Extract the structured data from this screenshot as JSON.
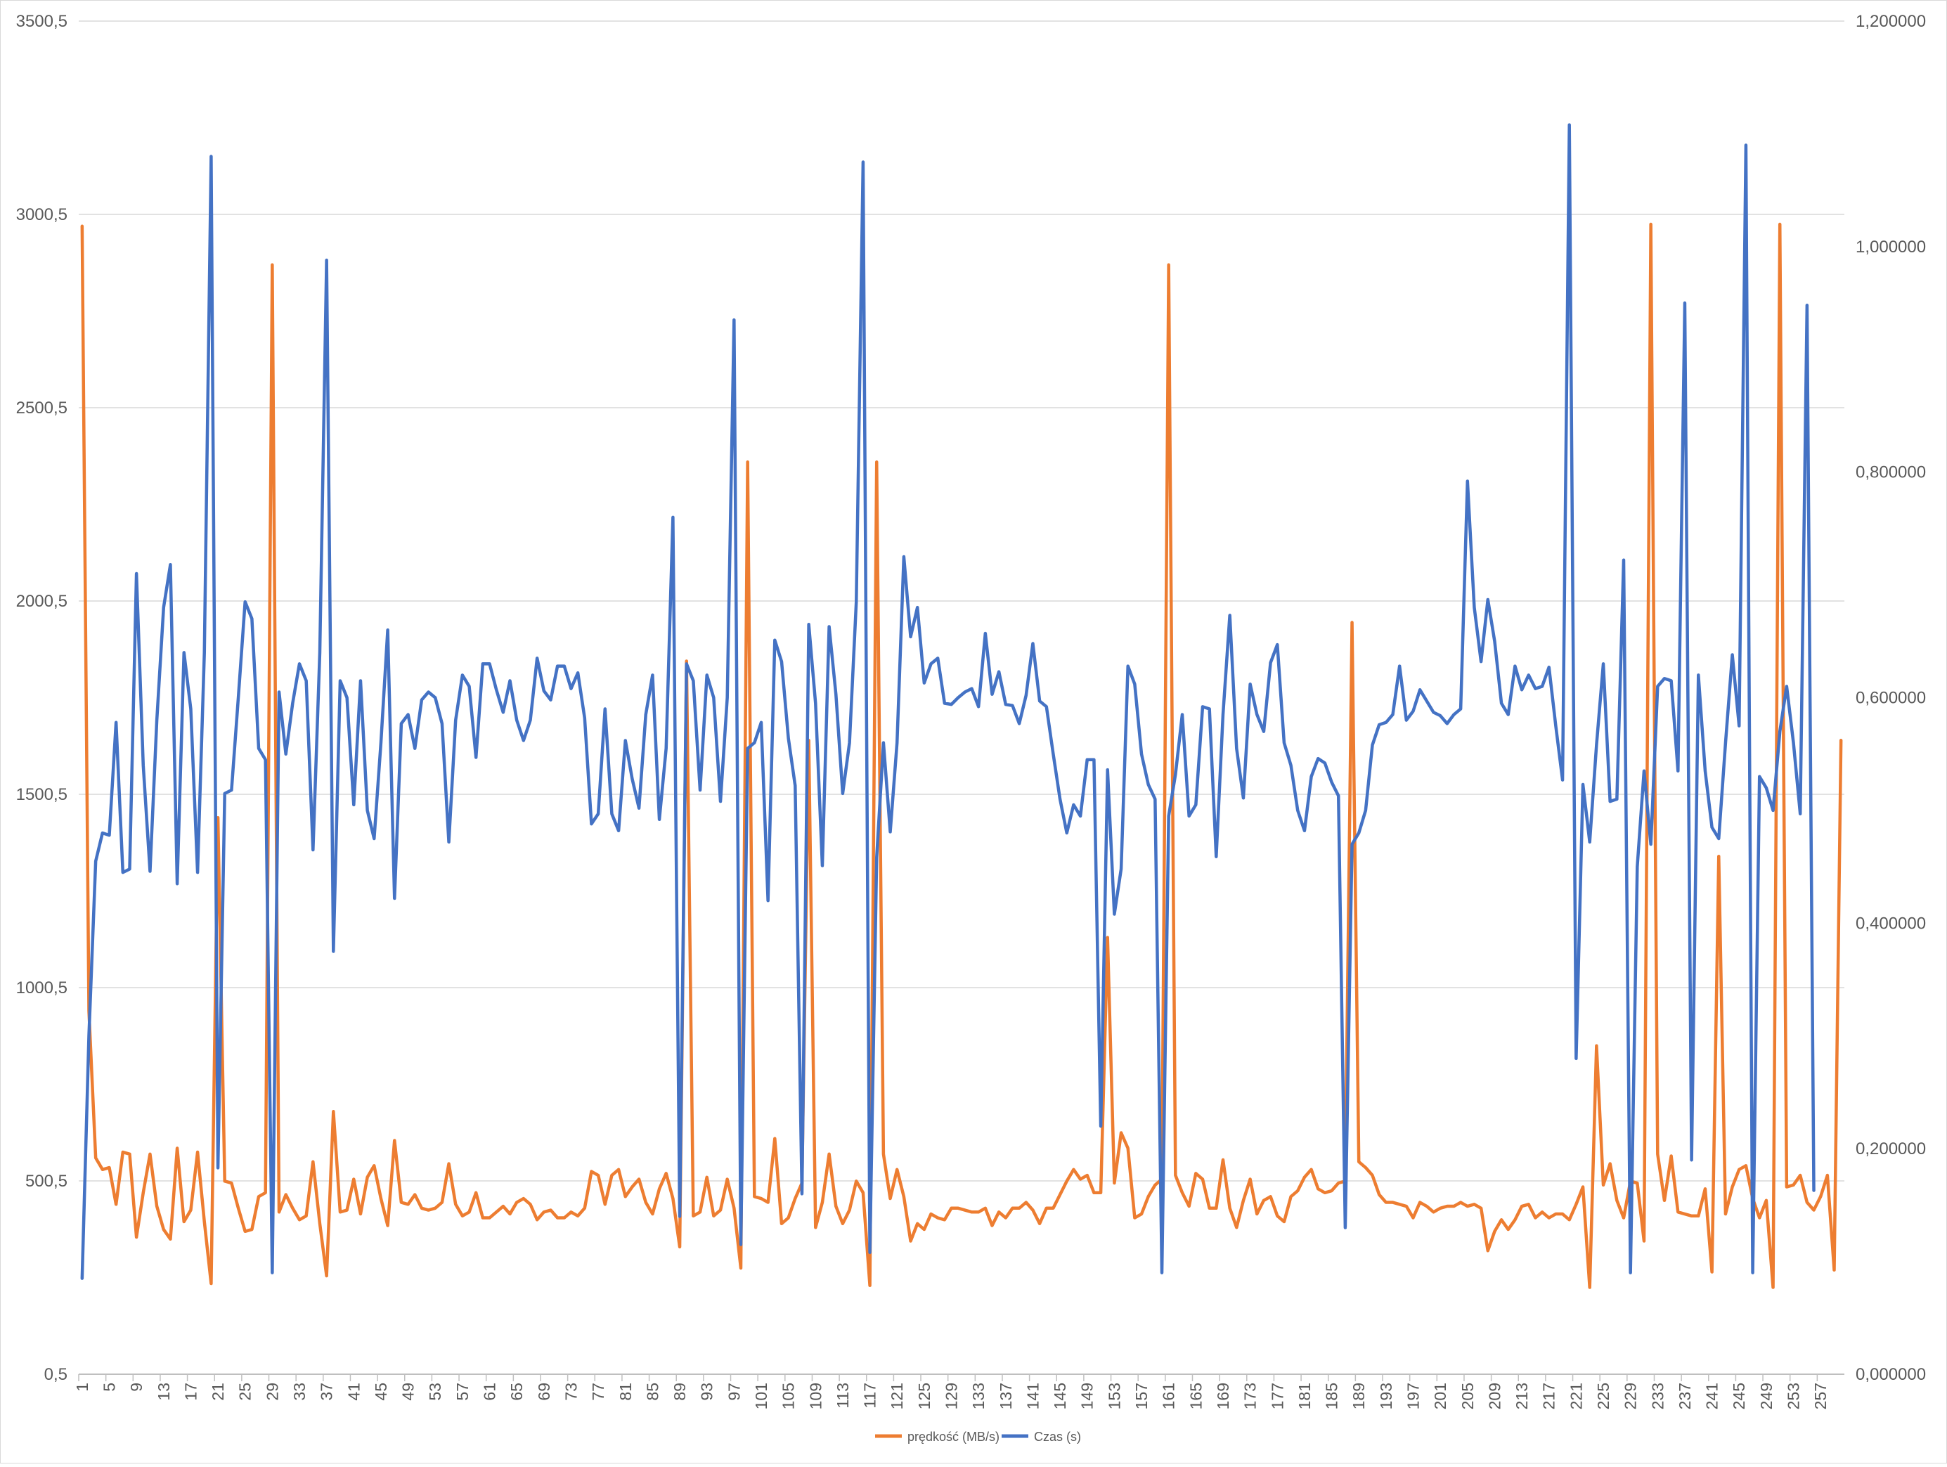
{
  "chart_data": {
    "type": "line",
    "title": "",
    "xlabel": "",
    "ylabel": "",
    "y2label": "",
    "x_start": 1,
    "x_tick_step": 4,
    "ylim": [
      0.5,
      3500.5
    ],
    "y_ticks": [
      0.5,
      500.5,
      1000.5,
      1500.5,
      2000.5,
      2500.5,
      3000.5,
      3500.5
    ],
    "y_tick_labels": [
      "0,5",
      "500,5",
      "1000,5",
      "1500,5",
      "2000,5",
      "2500,5",
      "3000,5",
      "3500,5"
    ],
    "y2lim": [
      0,
      1.2
    ],
    "y2_ticks": [
      0,
      0.2,
      0.4,
      0.6,
      0.8,
      1.0,
      1.2
    ],
    "y2_tick_labels": [
      "0,000000",
      "0,200000",
      "0,400000",
      "0,600000",
      "0,800000",
      "1,000000",
      "1,200000"
    ],
    "grid": true,
    "legend_position": "bottom",
    "series": [
      {
        "name": "prędkość (MB/s)",
        "axis": "left",
        "color": "#ED7D31",
        "values": [
          2970,
          940,
          560,
          530,
          535,
          440,
          575,
          570,
          355,
          470,
          570,
          435,
          375,
          350,
          585,
          395,
          425,
          575,
          395,
          235,
          1440,
          500,
          495,
          430,
          370,
          375,
          460,
          470,
          2870,
          420,
          465,
          430,
          400,
          410,
          550,
          390,
          255,
          680,
          420,
          425,
          505,
          415,
          510,
          540,
          455,
          385,
          605,
          445,
          440,
          465,
          430,
          425,
          430,
          445,
          545,
          440,
          410,
          420,
          470,
          405,
          405,
          420,
          435,
          415,
          445,
          455,
          440,
          400,
          420,
          425,
          405,
          405,
          420,
          410,
          430,
          525,
          515,
          440,
          515,
          530,
          460,
          485,
          505,
          445,
          415,
          480,
          520,
          455,
          330,
          1845,
          410,
          420,
          510,
          410,
          425,
          505,
          430,
          275,
          2360,
          460,
          455,
          445,
          610,
          390,
          405,
          455,
          495,
          1640,
          380,
          445,
          570,
          435,
          390,
          425,
          500,
          470,
          230,
          2360,
          570,
          455,
          530,
          460,
          345,
          390,
          375,
          415,
          405,
          400,
          430,
          430,
          425,
          420,
          420,
          430,
          385,
          420,
          405,
          430,
          430,
          445,
          425,
          390,
          430,
          430,
          465,
          500,
          530,
          505,
          515,
          470,
          470,
          1130,
          495,
          625,
          585,
          405,
          415,
          460,
          490,
          505,
          2870,
          515,
          470,
          435,
          520,
          505,
          430,
          430,
          555,
          430,
          380,
          450,
          505,
          415,
          450,
          460,
          410,
          395,
          460,
          475,
          510,
          530,
          480,
          470,
          475,
          495,
          500,
          1945,
          550,
          535,
          515,
          465,
          445,
          445,
          440,
          435,
          405,
          445,
          435,
          420,
          430,
          435,
          435,
          445,
          435,
          440,
          430,
          320,
          370,
          400,
          375,
          400,
          435,
          440,
          405,
          420,
          405,
          415,
          415,
          400,
          440,
          485,
          225,
          850,
          490,
          545,
          450,
          405,
          500,
          495,
          345,
          2975,
          570,
          450,
          565,
          420,
          415,
          410,
          410,
          480,
          265,
          1340,
          415,
          485,
          530,
          540,
          455,
          405,
          450,
          225,
          2975,
          485,
          490,
          515,
          445,
          425,
          460,
          515,
          270,
          1640
        ]
      },
      {
        "name": "Czas (s)",
        "axis": "right",
        "color": "#4472C4",
        "values": [
          0.085,
          0.3,
          0.455,
          0.48,
          0.478,
          0.578,
          0.445,
          0.448,
          0.71,
          0.54,
          0.446,
          0.58,
          0.68,
          0.718,
          0.435,
          0.64,
          0.59,
          0.445,
          0.64,
          1.08,
          0.183,
          0.515,
          0.518,
          0.6,
          0.685,
          0.67,
          0.555,
          0.545,
          0.09,
          0.605,
          0.55,
          0.595,
          0.63,
          0.615,
          0.465,
          0.64,
          0.988,
          0.375,
          0.615,
          0.6,
          0.505,
          0.615,
          0.5,
          0.475,
          0.56,
          0.66,
          0.422,
          0.577,
          0.585,
          0.555,
          0.598,
          0.605,
          0.6,
          0.577,
          0.472,
          0.58,
          0.62,
          0.61,
          0.547,
          0.63,
          0.63,
          0.607,
          0.587,
          0.615,
          0.58,
          0.562,
          0.58,
          0.635,
          0.606,
          0.598,
          0.628,
          0.628,
          0.608,
          0.622,
          0.582,
          0.488,
          0.497,
          0.59,
          0.497,
          0.482,
          0.562,
          0.528,
          0.502,
          0.585,
          0.62,
          0.492,
          0.555,
          0.76,
          0.14,
          0.63,
          0.615,
          0.518,
          0.62,
          0.6,
          0.508,
          0.6,
          0.935,
          0.115,
          0.555,
          0.56,
          0.578,
          0.42,
          0.651,
          0.632,
          0.564,
          0.522,
          0.16,
          0.665,
          0.595,
          0.451,
          0.663,
          0.603,
          0.515,
          0.56,
          0.685,
          1.075,
          0.108,
          0.458,
          0.56,
          0.481,
          0.56,
          0.725,
          0.654,
          0.68,
          0.613,
          0.63,
          0.635,
          0.595,
          0.594,
          0.6,
          0.605,
          0.608,
          0.592,
          0.657,
          0.603,
          0.623,
          0.594,
          0.593,
          0.577,
          0.602,
          0.648,
          0.597,
          0.592,
          0.55,
          0.51,
          0.48,
          0.505,
          0.495,
          0.545,
          0.545,
          0.22,
          0.536,
          0.408,
          0.448,
          0.628,
          0.612,
          0.55,
          0.523,
          0.51,
          0.09,
          0.495,
          0.532,
          0.585,
          0.495,
          0.505,
          0.592,
          0.59,
          0.459,
          0.585,
          0.673,
          0.555,
          0.511,
          0.612,
          0.585,
          0.57,
          0.631,
          0.647,
          0.56,
          0.54,
          0.5,
          0.482,
          0.53,
          0.546,
          0.542,
          0.525,
          0.513,
          0.13,
          0.47,
          0.48,
          0.5,
          0.558,
          0.576,
          0.578,
          0.585,
          0.628,
          0.58,
          0.588,
          0.607,
          0.597,
          0.587,
          0.584,
          0.577,
          0.585,
          0.59,
          0.792,
          0.68,
          0.632,
          0.687,
          0.65,
          0.595,
          0.585,
          0.628,
          0.607,
          0.62,
          0.608,
          0.61,
          0.627,
          0.575,
          0.527,
          1.108,
          0.28,
          0.523,
          0.472,
          0.558,
          0.63,
          0.508,
          0.51,
          0.722,
          0.09,
          0.45,
          0.535,
          0.47,
          0.61,
          0.617,
          0.615,
          0.535,
          0.95,
          0.19,
          0.62,
          0.535,
          0.485,
          0.475,
          0.56,
          0.638,
          0.575,
          1.09,
          0.09,
          0.53,
          0.52,
          0.5,
          0.57,
          0.61,
          0.56,
          0.497,
          0.948,
          0.163
        ]
      }
    ]
  }
}
